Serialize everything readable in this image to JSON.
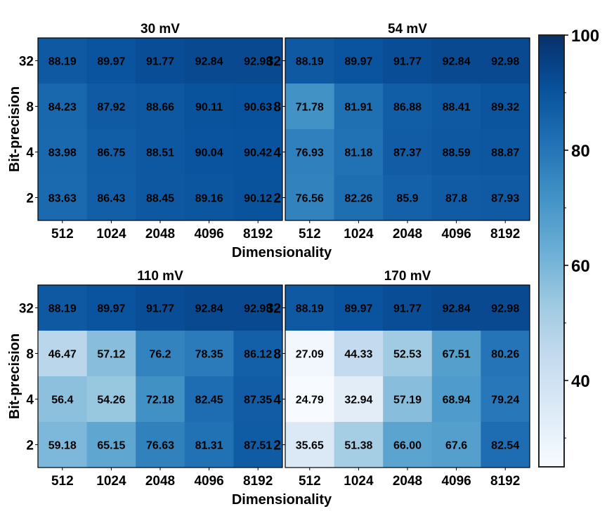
{
  "chart_data": {
    "type": "heatmap",
    "x_categories": [
      "512",
      "1024",
      "2048",
      "4096",
      "8192"
    ],
    "y_categories": [
      "32",
      "8",
      "4",
      "2"
    ],
    "xlabel": "Dimensionality",
    "ylabel": "Bit-precision",
    "panels": [
      {
        "title": "30 mV",
        "values": [
          [
            "88.19",
            "89.97",
            "91.77",
            "92.84",
            "92.98"
          ],
          [
            "84.23",
            "87.92",
            "88.66",
            "90.11",
            "90.63"
          ],
          [
            "83.98",
            "86.75",
            "88.51",
            "90.04",
            "90.42"
          ],
          [
            "83.63",
            "86.43",
            "88.45",
            "89.16",
            "90.12"
          ]
        ]
      },
      {
        "title": "54 mV",
        "values": [
          [
            "88.19",
            "89.97",
            "91.77",
            "92.84",
            "92.98"
          ],
          [
            "71.78",
            "81.91",
            "86.88",
            "88.41",
            "89.32"
          ],
          [
            "76.93",
            "81.18",
            "87.37",
            "88.59",
            "88.87"
          ],
          [
            "76.56",
            "82.26",
            "85.9",
            "87.8",
            "87.93"
          ]
        ]
      },
      {
        "title": "110 mV",
        "values": [
          [
            "88.19",
            "89.97",
            "91.77",
            "92.84",
            "92.98"
          ],
          [
            "46.47",
            "57.12",
            "76.2",
            "78.35",
            "86.12"
          ],
          [
            "56.4",
            "54.26",
            "72.18",
            "82.45",
            "87.35"
          ],
          [
            "59.18",
            "65.15",
            "76.63",
            "81.31",
            "87.51"
          ]
        ]
      },
      {
        "title": "170 mV",
        "values": [
          [
            "88.19",
            "89.97",
            "91.77",
            "92.84",
            "92.98"
          ],
          [
            "27.09",
            "44.33",
            "52.53",
            "67.51",
            "80.26"
          ],
          [
            "24.79",
            "32.94",
            "57.19",
            "68.94",
            "79.24"
          ],
          [
            "35.65",
            "51.38",
            "66.00",
            "67.6",
            "82.54"
          ]
        ]
      }
    ],
    "colorbar": {
      "range": [
        25,
        100
      ],
      "ticks": [
        "40",
        "60",
        "80",
        "100"
      ],
      "colormap": "Blues"
    }
  }
}
